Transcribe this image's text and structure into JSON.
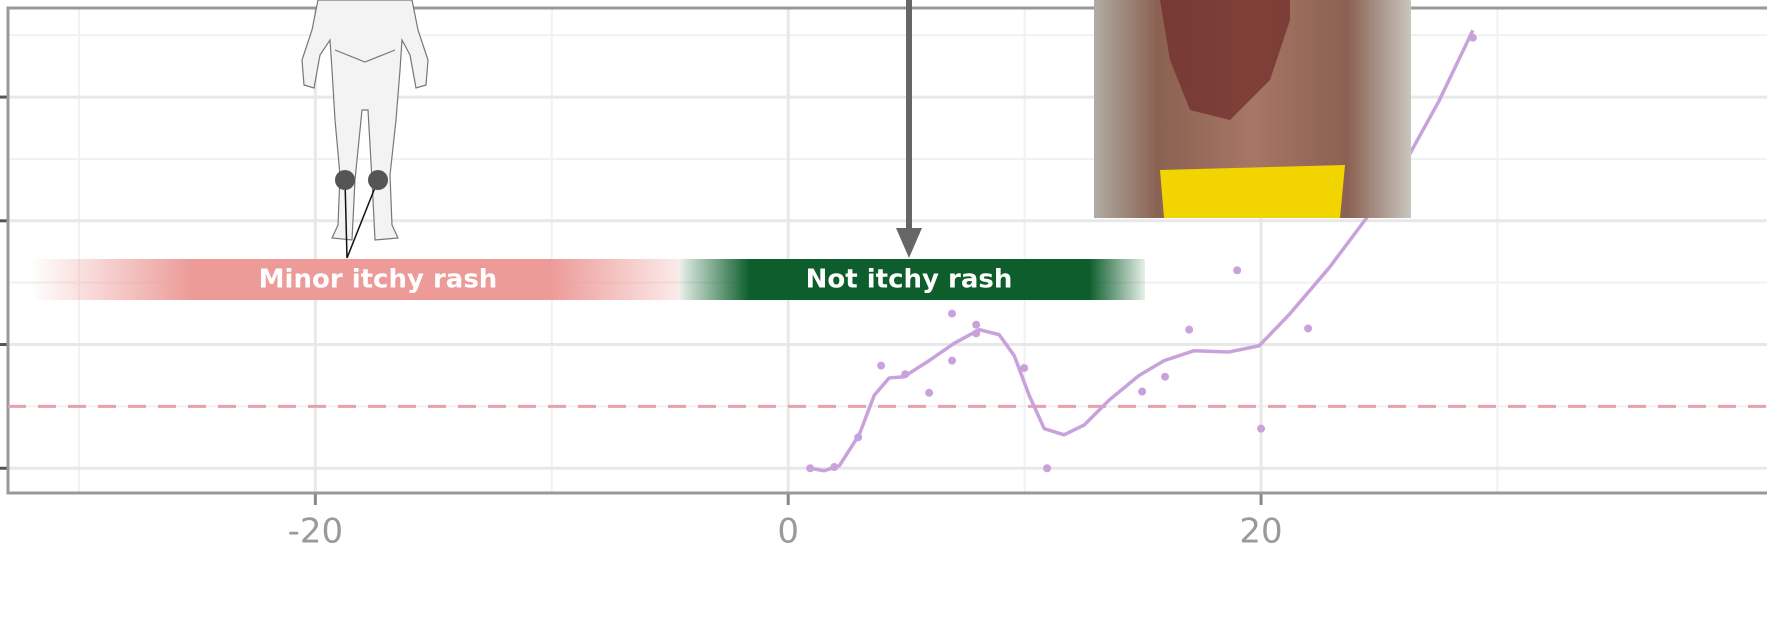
{
  "chart_data": {
    "type": "scatter",
    "xlim": [
      -33.0,
      41.4
    ],
    "xticks": [
      -20,
      0,
      20
    ],
    "ylim": [
      -0.2,
      3.72
    ],
    "yticks": [
      0,
      1,
      2,
      3
    ],
    "grid": true,
    "hline": {
      "value": 0.5,
      "color": "#e8a0aa"
    },
    "annotations": [
      {
        "text": "Minor itchy rash",
        "color": "#ec9b98"
      },
      {
        "text": "Not itchy rash",
        "color": "#0d5e2c"
      }
    ],
    "series": [
      {
        "type": "scatter",
        "color": "#c9a2dc",
        "x": [
          0.93,
          1.95,
          2.96,
          3.93,
          4.95,
          5.96,
          6.93,
          6.93,
          7.95,
          7.95,
          9.98,
          10.95,
          14.97,
          15.94,
          16.96,
          18.99,
          20.0,
          21.99,
          28.96
        ],
        "values": [
          0.0,
          0.01,
          0.25,
          0.83,
          0.76,
          0.61,
          1.25,
          0.87,
          1.16,
          1.09,
          0.81,
          0.0,
          0.62,
          0.74,
          1.12,
          1.6,
          0.32,
          1.13,
          3.48
        ]
      },
      {
        "type": "line",
        "color": "#c9a2dc",
        "x": [
          0.93,
          1.52,
          2.16,
          3.0,
          3.64,
          4.27,
          4.9,
          5.96,
          7.02,
          8.08,
          8.92,
          9.56,
          10.19,
          10.83,
          11.67,
          12.52,
          13.57,
          14.84,
          15.9,
          17.17,
          18.65,
          19.92,
          21.18,
          22.88,
          24.57,
          26.26,
          27.53,
          28.96
        ],
        "values": [
          0.0,
          -0.02,
          0.02,
          0.27,
          0.59,
          0.73,
          0.74,
          0.87,
          1.01,
          1.12,
          1.08,
          0.91,
          0.59,
          0.32,
          0.27,
          0.35,
          0.55,
          0.75,
          0.87,
          0.95,
          0.94,
          0.99,
          1.24,
          1.62,
          2.05,
          2.53,
          2.97,
          3.54
        ]
      }
    ]
  }
}
